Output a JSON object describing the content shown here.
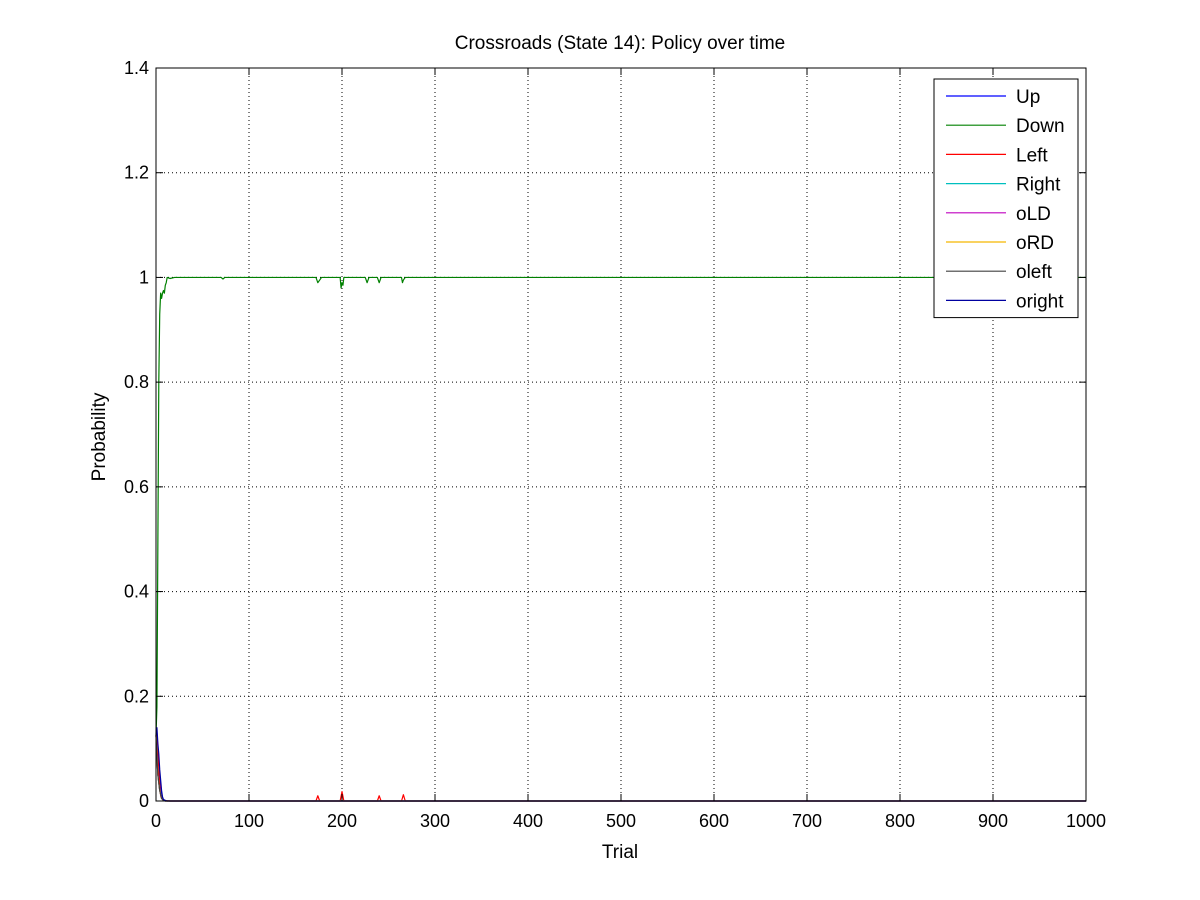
{
  "chart_data": {
    "type": "line",
    "title": "Crossroads (State 14): Policy over time",
    "xlabel": "Trial",
    "ylabel": "Probability",
    "xlim": [
      0,
      1000
    ],
    "ylim": [
      0,
      1.4
    ],
    "xticks": [
      0,
      100,
      200,
      300,
      400,
      500,
      600,
      700,
      800,
      900,
      1000
    ],
    "xtick_labels": [
      "0",
      "100",
      "200",
      "300",
      "400",
      "500",
      "600",
      "700",
      "800",
      "900",
      "1000"
    ],
    "yticks": [
      0,
      0.2,
      0.4,
      0.6,
      0.8,
      1.0,
      1.2,
      1.4
    ],
    "ytick_labels": [
      "0",
      "0.2",
      "0.4",
      "0.6",
      "0.8",
      "1",
      "1.2",
      "1.4"
    ],
    "grid": true,
    "legend_position": "top-right",
    "series": [
      {
        "name": "Up",
        "color": "#0000ff",
        "x": [
          0,
          1,
          2,
          3,
          4,
          5,
          6,
          7,
          8,
          10,
          15,
          1000
        ],
        "y": [
          0.125,
          0.1,
          0.08,
          0.07,
          0.05,
          0.03,
          0.015,
          0.005,
          0.002,
          0.001,
          0,
          0
        ]
      },
      {
        "name": "Down",
        "color": "#008000",
        "x": [
          0,
          1,
          2,
          3,
          4,
          5,
          6,
          7,
          8,
          9,
          10,
          11,
          12,
          15,
          20,
          30,
          70,
          72,
          74,
          172,
          174,
          176,
          178,
          198,
          199,
          200,
          201,
          202,
          225,
          227,
          229,
          238,
          240,
          242,
          264,
          265,
          266,
          268,
          1000
        ],
        "y": [
          0.125,
          0.18,
          0.49,
          0.8,
          0.93,
          0.97,
          0.96,
          0.97,
          0.975,
          0.97,
          0.985,
          0.99,
          1.0,
          0.998,
          1.0,
          1.0,
          1.0,
          0.997,
          1.0,
          1.0,
          0.99,
          0.995,
          1.0,
          1.0,
          0.98,
          0.99,
          0.985,
          1.0,
          1.0,
          0.99,
          1.0,
          1.0,
          0.99,
          1.0,
          1.0,
          0.99,
          0.995,
          1.0,
          1.0
        ]
      },
      {
        "name": "Left",
        "color": "#ff0000",
        "x": [
          0,
          1,
          2,
          3,
          4,
          5,
          6,
          8,
          10,
          15,
          172,
          174,
          176,
          198,
          200,
          202,
          238,
          240,
          242,
          264,
          266,
          268,
          1000
        ],
        "y": [
          0.125,
          0.13,
          0.1,
          0.06,
          0.03,
          0.01,
          0.005,
          0.002,
          0.001,
          0,
          0,
          0.01,
          0,
          0,
          0.018,
          0,
          0,
          0.01,
          0,
          0,
          0.012,
          0,
          0
        ]
      },
      {
        "name": "Right",
        "color": "#00bfbf",
        "x": [
          0,
          2,
          4,
          6,
          8,
          10,
          1000
        ],
        "y": [
          0.125,
          0.05,
          0.02,
          0.005,
          0.001,
          0,
          0
        ]
      },
      {
        "name": "oLD",
        "color": "#bf00bf",
        "x": [
          0,
          2,
          4,
          6,
          8,
          10,
          1000
        ],
        "y": [
          0.125,
          0.05,
          0.02,
          0.005,
          0.001,
          0,
          0
        ]
      },
      {
        "name": "oRD",
        "color": "#f5b800",
        "x": [
          0,
          2,
          4,
          6,
          8,
          10,
          1000
        ],
        "y": [
          0.125,
          0.05,
          0.02,
          0.005,
          0.001,
          0,
          0
        ]
      },
      {
        "name": "oleft",
        "color": "#404040",
        "x": [
          0,
          2,
          4,
          6,
          8,
          10,
          1000
        ],
        "y": [
          0.125,
          0.05,
          0.02,
          0.005,
          0.001,
          0,
          0
        ]
      },
      {
        "name": "oright",
        "color": "#0000a0",
        "x": [
          0,
          1,
          2,
          3,
          4,
          5,
          6,
          7,
          8,
          10,
          12,
          1000
        ],
        "y": [
          0.125,
          0.14,
          0.11,
          0.09,
          0.06,
          0.04,
          0.02,
          0.008,
          0.003,
          0.001,
          0,
          0
        ]
      }
    ]
  }
}
